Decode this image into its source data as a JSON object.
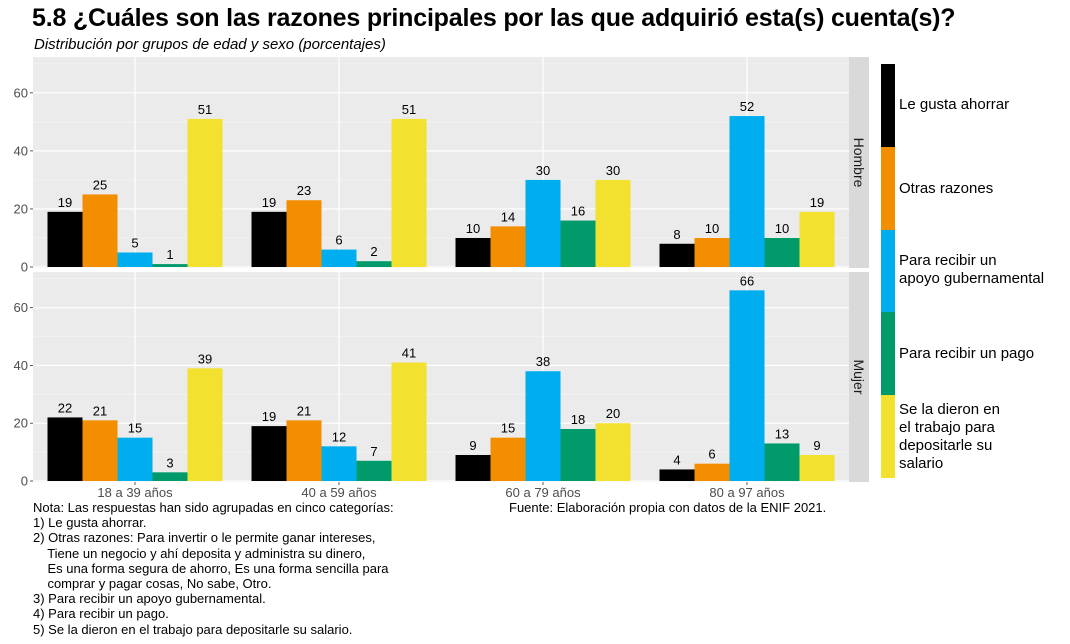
{
  "title": "5.8 ¿Cuáles son las razones principales por las que adquirió esta(s) cuenta(s)?",
  "subtitle": "Distribución por grupos de edad y sexo (porcentajes)",
  "source": "Fuente: Elaboración propia con datos de la ENIF 2021.",
  "note_lines": [
    "Nota: Las respuestas han sido agrupadas en cinco categorías:",
    "1) Le gusta ahorrar.",
    "2) Otras razones: Para invertir o le permite ganar intereses,",
    "    Tiene un negocio y ahí deposita y administra su dinero,",
    "    Es una forma segura de ahorro, Es una forma sencilla para",
    "    comprar y pagar cosas, No sabe, Otro.",
    "3) Para recibir un apoyo gubernamental.",
    "4) Para recibir un pago.",
    "5) Se la dieron en el trabajo para depositarle su salario."
  ],
  "chart_data": {
    "type": "bar",
    "categories": [
      "18 a 39 años",
      "40 a 59 años",
      "60 a 79 años",
      "80 a 97 años"
    ],
    "ylim": [
      0,
      72
    ],
    "yticks": [
      0,
      20,
      40,
      60
    ],
    "grid": true,
    "legend_position": "right",
    "series": [
      {
        "name": "Le gusta ahorrar",
        "color": "#000000"
      },
      {
        "name": "Otras razones",
        "color": "#F28E00"
      },
      {
        "name": "Para recibir un apoyo gubernamental",
        "color": "#00AEEF"
      },
      {
        "name": "Para recibir un pago",
        "color": "#009A6B"
      },
      {
        "name": "Se la dieron en el trabajo para depositarle su salario",
        "color": "#F2E12E"
      }
    ],
    "legend_lines": [
      [
        "Le gusta ahorrar"
      ],
      [
        "Otras razones"
      ],
      [
        "Para recibir un",
        "apoyo gubernamental"
      ],
      [
        "Para recibir un pago"
      ],
      [
        "Se la dieron en",
        "el trabajo para",
        "depositarle su",
        "salario"
      ]
    ],
    "panels": [
      {
        "name": "Hombre",
        "values": [
          [
            19,
            25,
            5,
            1,
            51
          ],
          [
            19,
            23,
            6,
            2,
            51
          ],
          [
            10,
            14,
            30,
            16,
            30
          ],
          [
            8,
            10,
            52,
            10,
            19
          ]
        ]
      },
      {
        "name": "Mujer",
        "values": [
          [
            22,
            21,
            15,
            3,
            39
          ],
          [
            19,
            21,
            12,
            7,
            41
          ],
          [
            9,
            15,
            38,
            18,
            20
          ],
          [
            4,
            6,
            66,
            13,
            9
          ]
        ]
      }
    ]
  }
}
